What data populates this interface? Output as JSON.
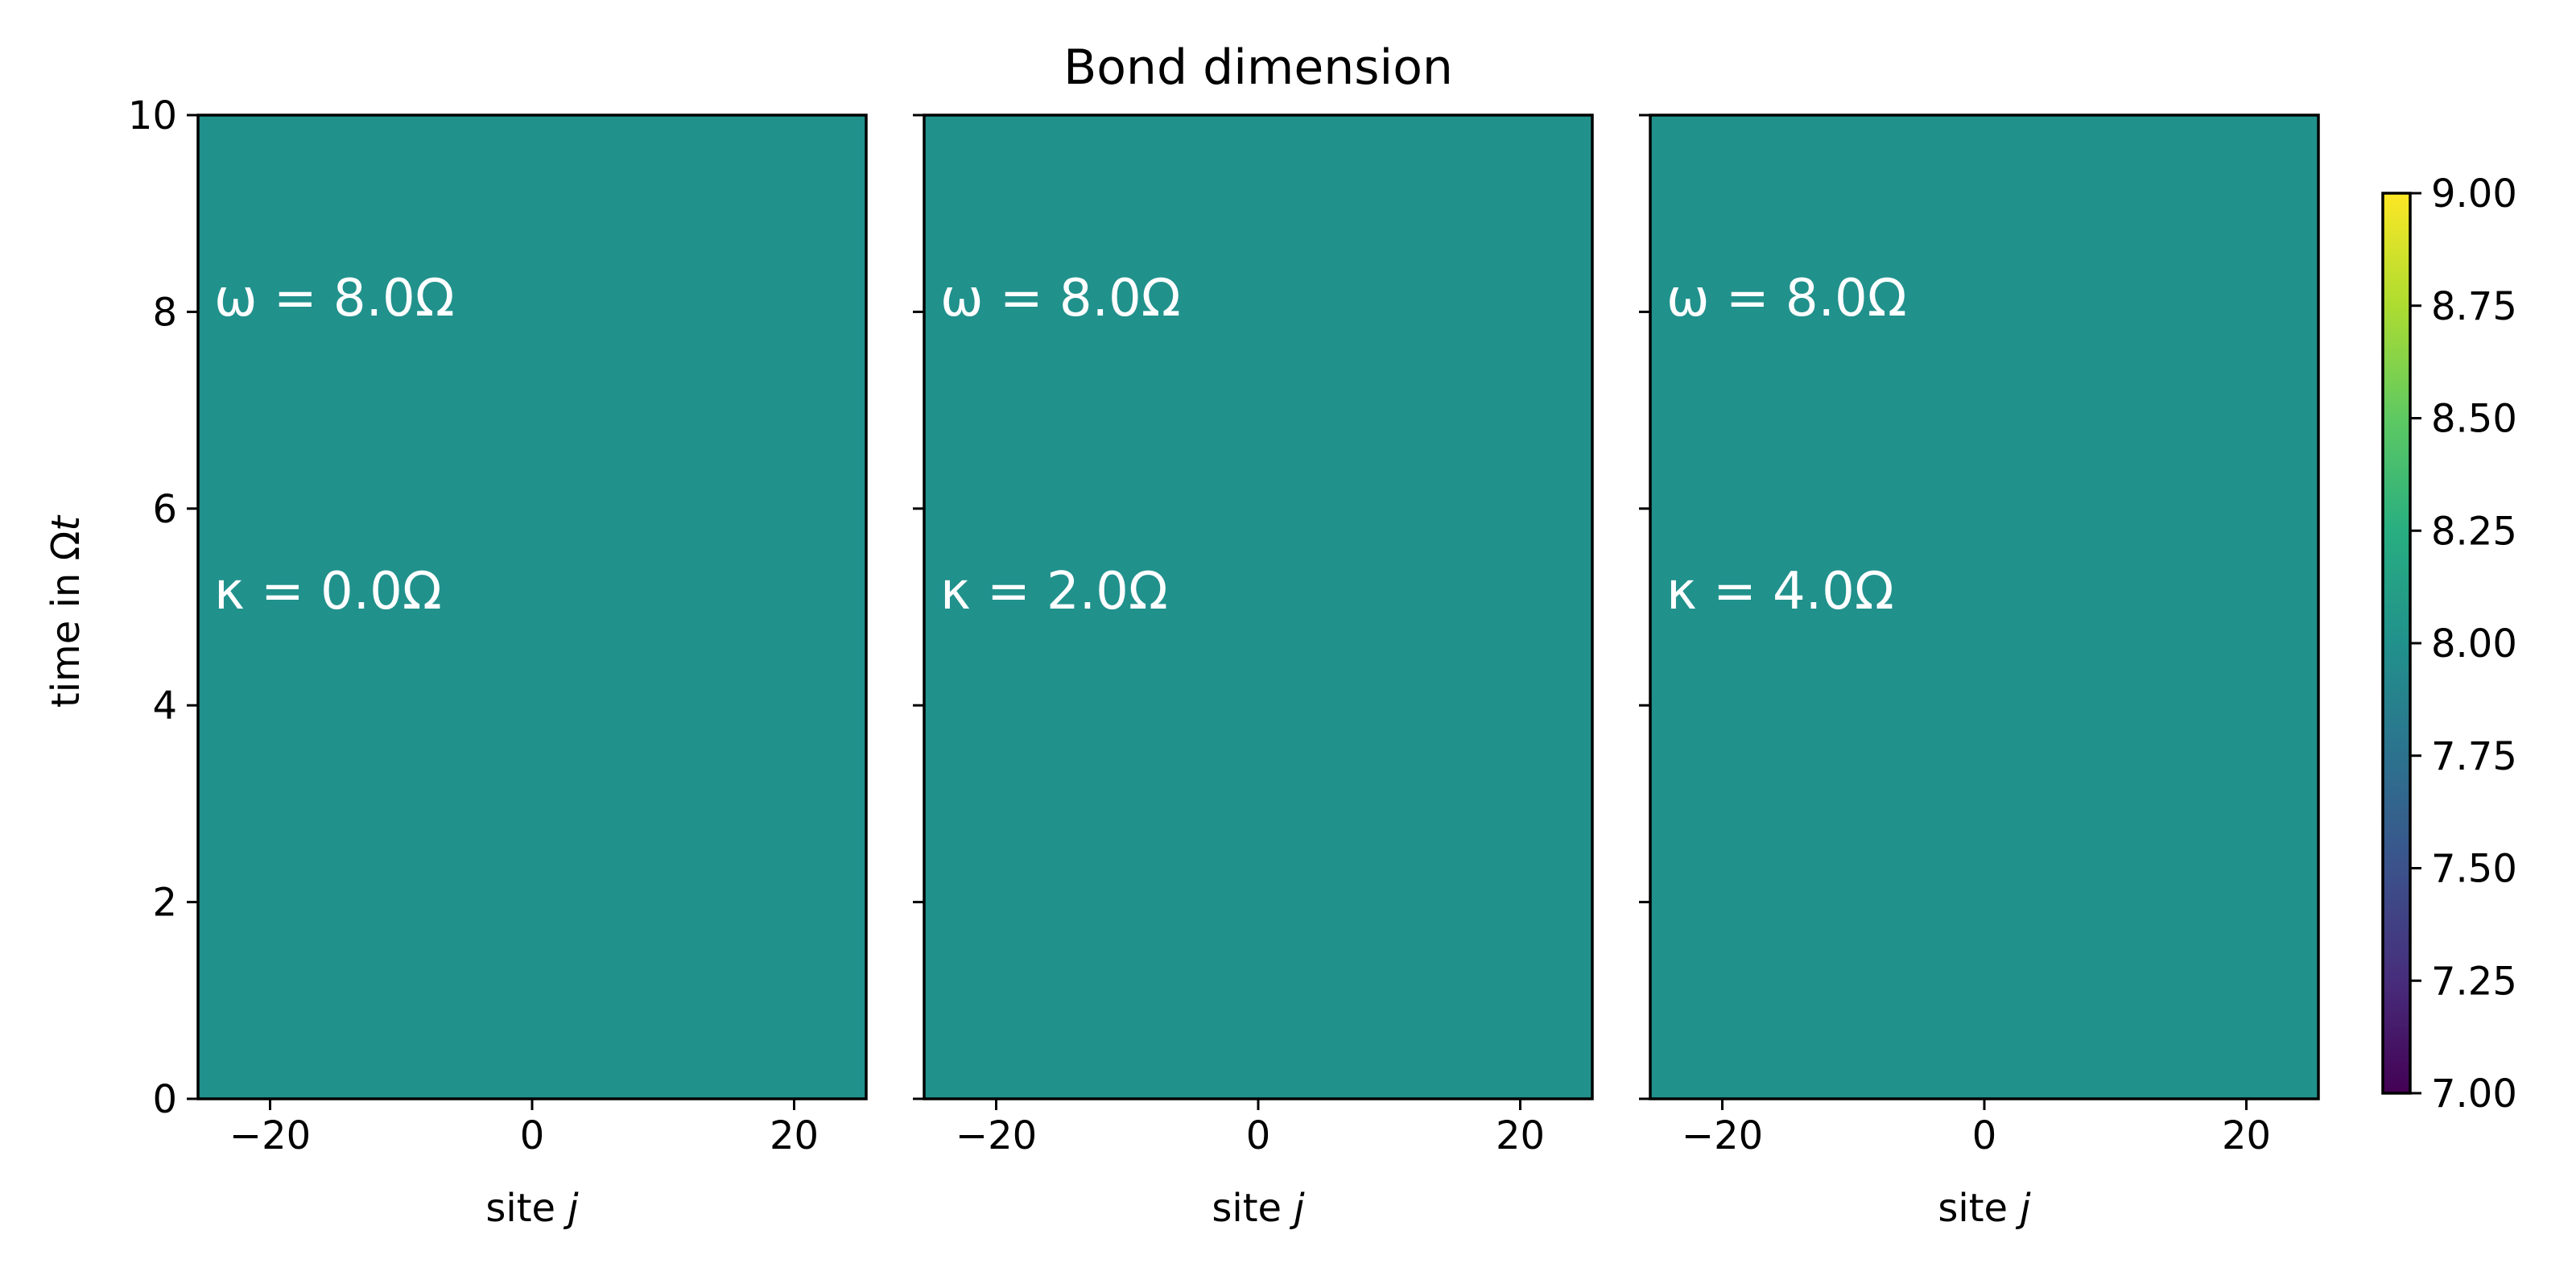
{
  "chart_data": {
    "type": "heatmap",
    "title": "Bond dimension",
    "xlabel": "site j",
    "ylabel": "time in Ωt",
    "xlim": [
      -25.5,
      25.5
    ],
    "ylim": [
      0,
      10
    ],
    "xticks": [
      -20,
      0,
      20
    ],
    "yticks": [
      0,
      2,
      4,
      6,
      8,
      10
    ],
    "panels": [
      {
        "omega_label": "ω = 8.0Ω",
        "kappa_label": "κ = 0.0Ω",
        "value": 8.0
      },
      {
        "omega_label": "ω = 8.0Ω",
        "kappa_label": "κ = 2.0Ω",
        "value": 8.0
      },
      {
        "omega_label": "ω = 8.0Ω",
        "kappa_label": "κ = 4.0Ω",
        "value": 8.0
      }
    ],
    "colorbar": {
      "colormap": "viridis",
      "min": 7.0,
      "max": 9.0,
      "ticks": [
        7.0,
        7.25,
        7.5,
        7.75,
        8.0,
        8.25,
        8.5,
        8.75,
        9.0
      ],
      "tick_labels": [
        "7.00",
        "7.25",
        "7.50",
        "7.75",
        "8.00",
        "8.25",
        "8.50",
        "8.75",
        "9.00"
      ]
    }
  }
}
